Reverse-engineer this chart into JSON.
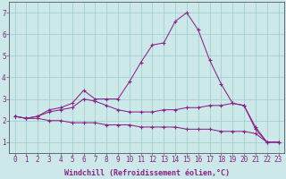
{
  "x": [
    0,
    1,
    2,
    3,
    4,
    5,
    6,
    7,
    8,
    9,
    10,
    11,
    12,
    13,
    14,
    15,
    16,
    17,
    18,
    19,
    20,
    21,
    22,
    23
  ],
  "line1": [
    2.2,
    2.1,
    2.2,
    2.5,
    2.6,
    2.8,
    3.4,
    3.0,
    3.0,
    3.0,
    3.8,
    4.7,
    5.5,
    5.6,
    6.6,
    7.0,
    6.2,
    4.8,
    3.7,
    2.8,
    2.7,
    1.6,
    1.0,
    1.0
  ],
  "line2": [
    2.2,
    2.1,
    2.2,
    2.4,
    2.5,
    2.6,
    3.0,
    2.9,
    2.7,
    2.5,
    2.4,
    2.4,
    2.4,
    2.5,
    2.5,
    2.6,
    2.6,
    2.7,
    2.7,
    2.8,
    2.7,
    1.7,
    1.0,
    1.0
  ],
  "line3": [
    2.2,
    2.1,
    2.1,
    2.0,
    2.0,
    1.9,
    1.9,
    1.9,
    1.8,
    1.8,
    1.8,
    1.7,
    1.7,
    1.7,
    1.7,
    1.6,
    1.6,
    1.6,
    1.5,
    1.5,
    1.5,
    1.4,
    1.0,
    1.0
  ],
  "line_color": "#882288",
  "bg_color": "#cce8e8",
  "grid_color": "#99cccc",
  "xlabel": "Windchill (Refroidissement éolien,°C)",
  "ylim_min": 0.5,
  "ylim_max": 7.5,
  "xlim_min": -0.5,
  "xlim_max": 23.5,
  "yticks": [
    1,
    2,
    3,
    4,
    5,
    6,
    7
  ],
  "xticks": [
    0,
    1,
    2,
    3,
    4,
    5,
    6,
    7,
    8,
    9,
    10,
    11,
    12,
    13,
    14,
    15,
    16,
    17,
    18,
    19,
    20,
    21,
    22,
    23
  ],
  "tick_fontsize": 5.5,
  "xlabel_fontsize": 6.0
}
